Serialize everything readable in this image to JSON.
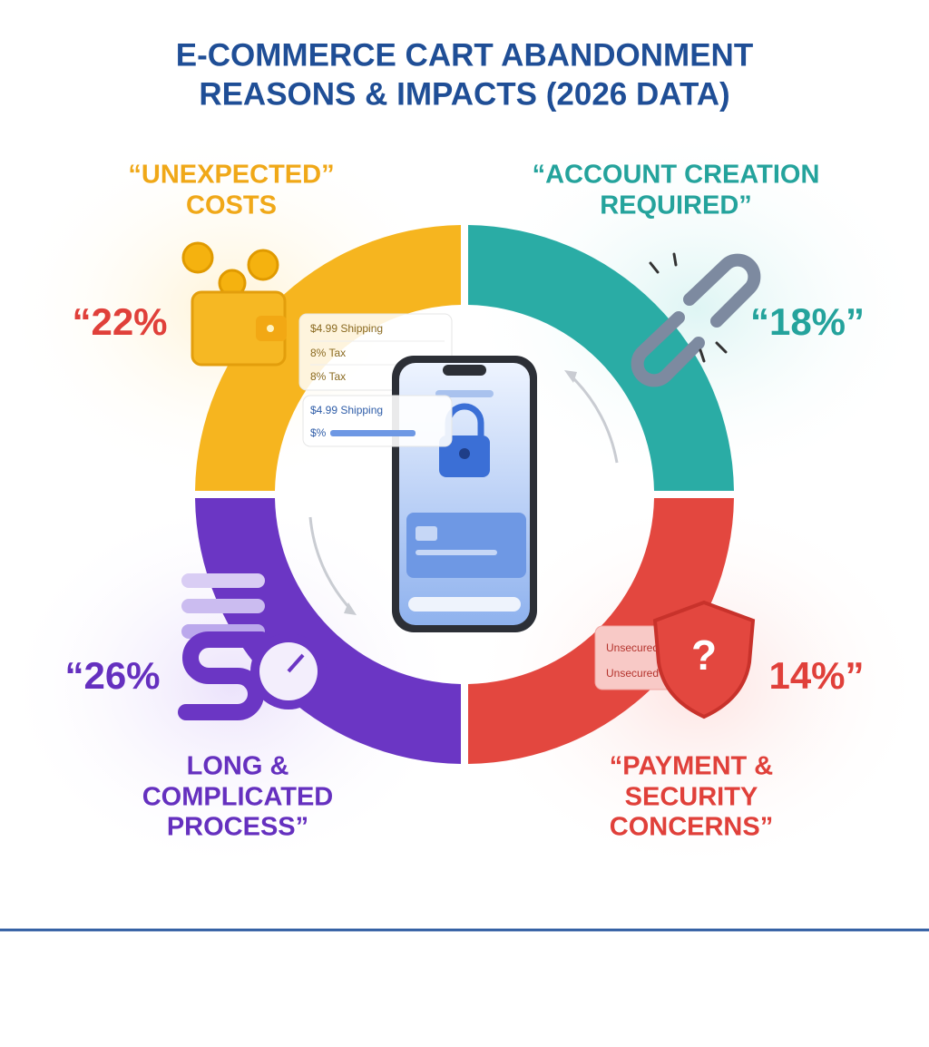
{
  "header": {
    "title_lines": [
      "E-COMMERCE CART ABANDONMENT",
      "REASONS & IMPACTS (2026 DATA)"
    ]
  },
  "segments": [
    {
      "title_lines": [
        "“UNEXPECTED”",
        "COSTS"
      ],
      "value": "“22%"
    },
    {
      "title_lines": [
        "“ACCOUNT CREATION",
        "REQUIRED”"
      ],
      "value": "“18%”"
    },
    {
      "title_lines": [
        "LONG &",
        "COMPLICATED",
        "PROCESS”"
      ],
      "value": "“26%"
    },
    {
      "title_lines": [
        "“PAYMENT &",
        "SECURITY",
        "CONCERNS”"
      ],
      "value": "14%”"
    }
  ],
  "receipt_lines": [
    "$4.99 Shipping",
    "8% Tax",
    "8% Tax",
    "$4.99 Shipping",
    "$%"
  ],
  "security_lines": [
    "Unsecured",
    "Unsecured"
  ]
}
